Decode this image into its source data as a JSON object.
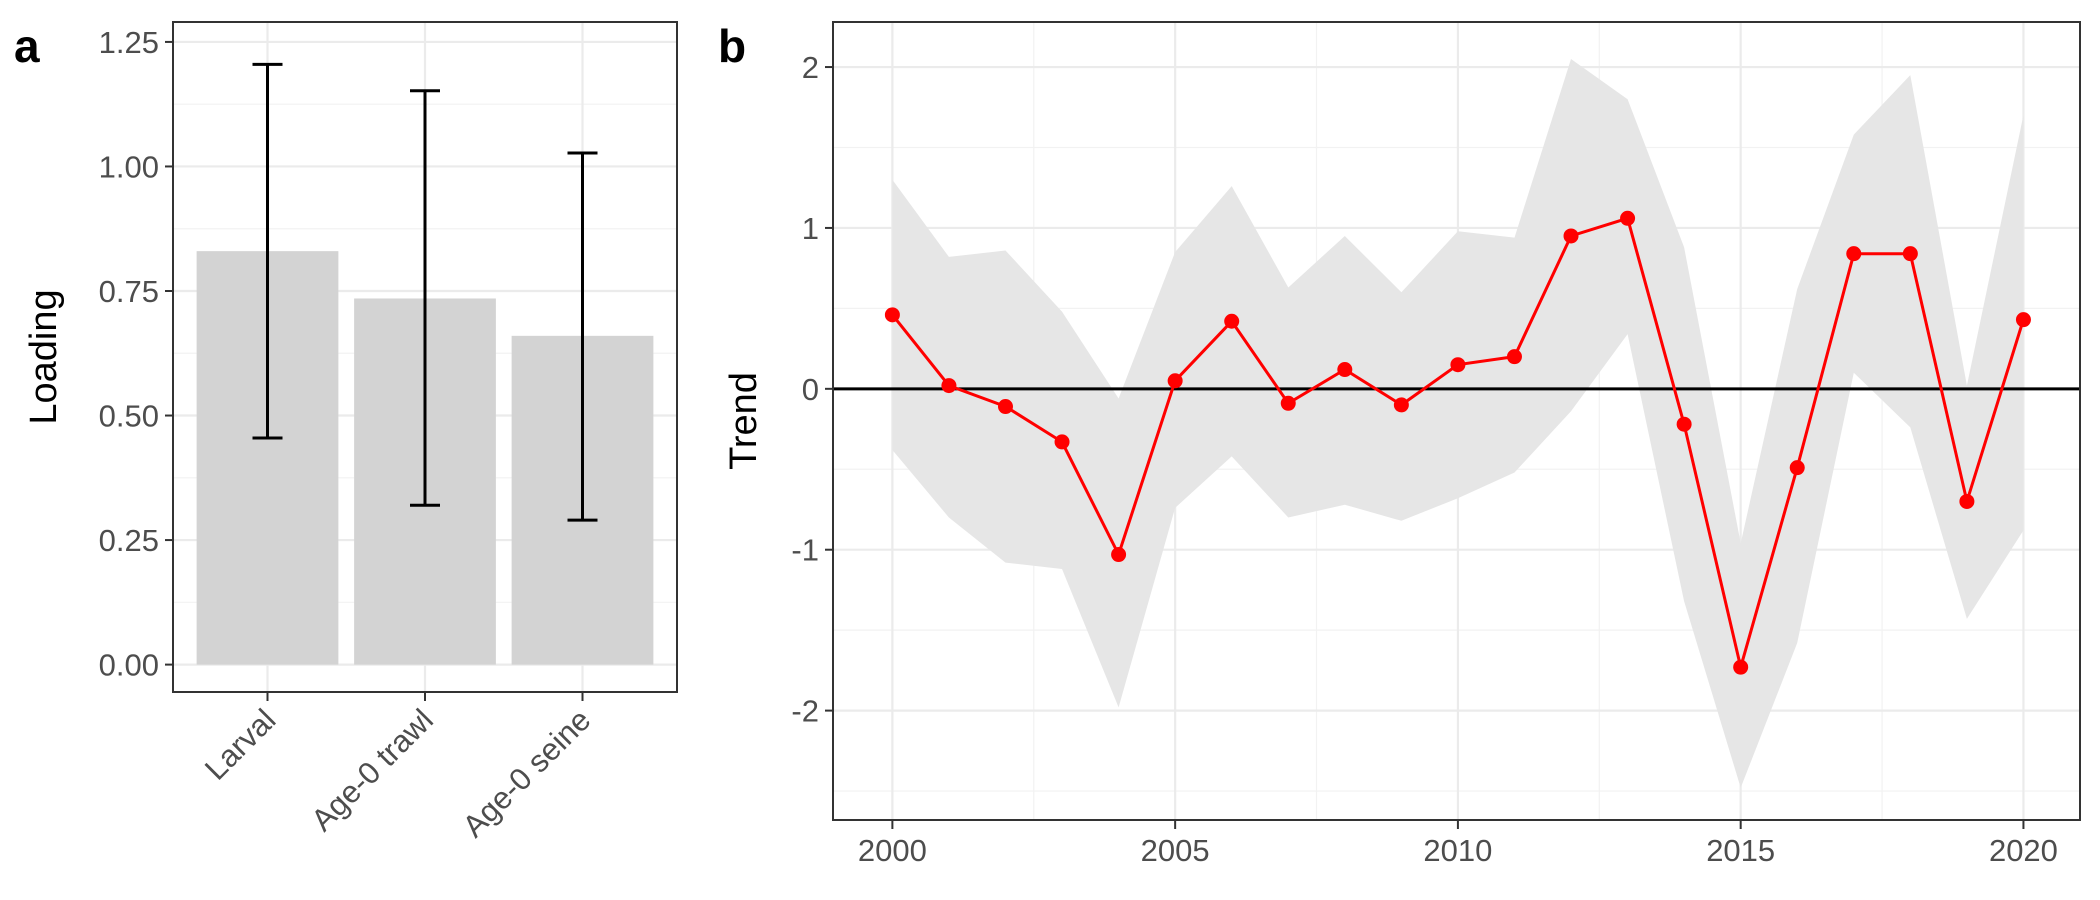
{
  "chart_data": [
    {
      "panel_label": "a",
      "type": "bar",
      "ylabel": "Loading",
      "ylim": [
        -0.055,
        1.29
      ],
      "yticks": [
        0,
        0.25,
        0.5,
        0.75,
        1.0,
        1.25
      ],
      "ytick_labels": [
        "0.00",
        "0.25",
        "0.50",
        "0.75",
        "1.00",
        "1.25"
      ],
      "categories": [
        "Larval",
        "Age-0 trawl",
        "Age-0 seine"
      ],
      "values": [
        0.83,
        0.735,
        0.66
      ],
      "error_lower": [
        0.455,
        0.32,
        0.29
      ],
      "error_upper": [
        1.205,
        1.152,
        1.027
      ],
      "bar_color": "#d3d3d3",
      "grid": true,
      "x_tick_label_rotation": "45 degrees"
    },
    {
      "panel_label": "b",
      "type": "line",
      "ylabel": "Trend",
      "xlim": [
        1998.95,
        2021.0
      ],
      "ylim": [
        -2.68,
        2.28
      ],
      "xticks": [
        2000,
        2005,
        2010,
        2015,
        2020
      ],
      "xtick_labels": [
        "2000",
        "2005",
        "2010",
        "2015",
        "2020"
      ],
      "yticks": [
        -2,
        -1,
        0,
        1,
        2
      ],
      "ytick_labels": [
        "-2",
        "-1",
        "0",
        "1",
        "2"
      ],
      "x": [
        2000,
        2001,
        2002,
        2003,
        2004,
        2005,
        2006,
        2007,
        2008,
        2009,
        2010,
        2011,
        2012,
        2013,
        2014,
        2015,
        2016,
        2017,
        2018,
        2019,
        2020
      ],
      "y": [
        0.46,
        0.02,
        -0.11,
        -0.33,
        -1.03,
        0.05,
        0.42,
        -0.09,
        0.12,
        -0.1,
        0.15,
        0.2,
        0.95,
        1.06,
        -0.22,
        -1.73,
        -0.49,
        0.84,
        0.84,
        -0.7,
        0.43
      ],
      "ribbon_lower": [
        -0.38,
        -0.8,
        -1.08,
        -1.12,
        -1.98,
        -0.74,
        -0.42,
        -0.8,
        -0.72,
        -0.82,
        -0.68,
        -0.52,
        -0.14,
        0.34,
        -1.32,
        -2.48,
        -1.58,
        0.1,
        -0.24,
        -1.43,
        -0.88
      ],
      "ribbon_upper": [
        1.3,
        0.82,
        0.86,
        0.48,
        -0.06,
        0.85,
        1.26,
        0.63,
        0.95,
        0.6,
        0.98,
        0.94,
        2.05,
        1.8,
        0.88,
        -0.96,
        0.62,
        1.58,
        1.95,
        0.02,
        1.7
      ],
      "reference_line_y": 0,
      "line_color": "#ff0000",
      "ribbon_color": "#e6e6e6",
      "grid": true
    }
  ]
}
